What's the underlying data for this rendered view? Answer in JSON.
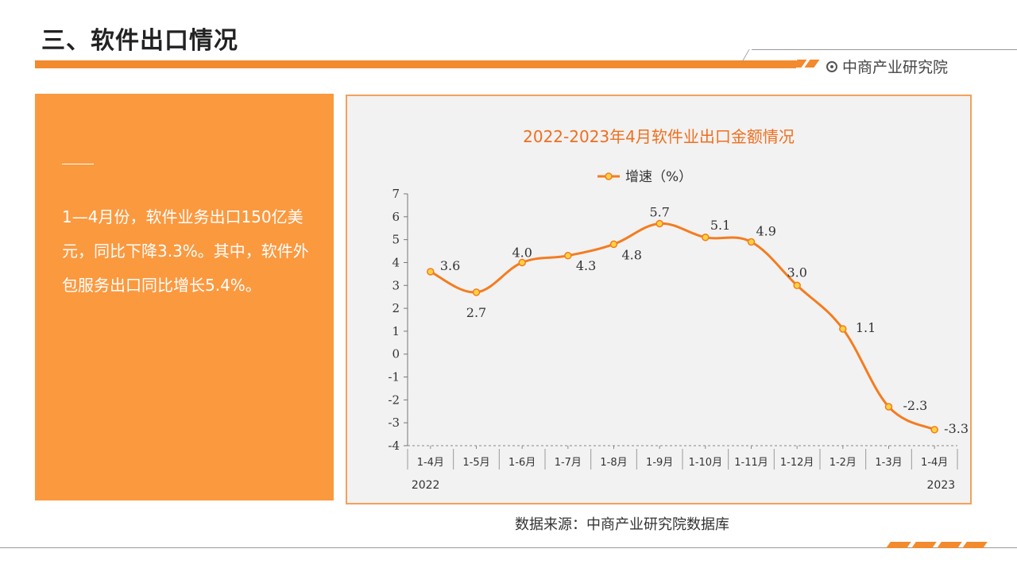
{
  "page": {
    "title": "三、软件出口情况",
    "brand": "中商产业研究院",
    "accent_color": "#f28a2e"
  },
  "panel": {
    "text": "1—4月份，软件业务出口150亿美元，同比下降3.3%。其中，软件外包服务出口同比增长5.4%。",
    "background_color": "#fb993f"
  },
  "source": "数据来源：中商产业研究院数据库",
  "chart_data": {
    "type": "line",
    "title": "2022-2023年4月软件业出口金额情况",
    "legend_position": "top",
    "categories": [
      "1-4月",
      "1-5月",
      "1-6月",
      "1-7月",
      "1-8月",
      "1-9月",
      "1-10月",
      "1-11月",
      "1-12月",
      "1-2月",
      "1-3月",
      "1-4月"
    ],
    "year_labels": [
      "2022",
      "2023"
    ],
    "series": [
      {
        "name": "增速（%）",
        "color": "#f47c20",
        "values": [
          3.6,
          2.7,
          4.0,
          4.3,
          4.8,
          5.7,
          5.1,
          4.9,
          3.0,
          1.1,
          -2.3,
          -3.3
        ],
        "labels": [
          "3.6",
          "2.7",
          "4.0",
          "4.3",
          "4.8",
          "5.7",
          "5.1",
          "4.9",
          "3.0",
          "1.1",
          "-2.3",
          "-3.3"
        ]
      }
    ],
    "ylim": [
      -4,
      7
    ],
    "yticks": [
      -4,
      -3,
      -2,
      -1,
      0,
      1,
      2,
      3,
      4,
      5,
      6,
      7
    ],
    "grid": false
  }
}
